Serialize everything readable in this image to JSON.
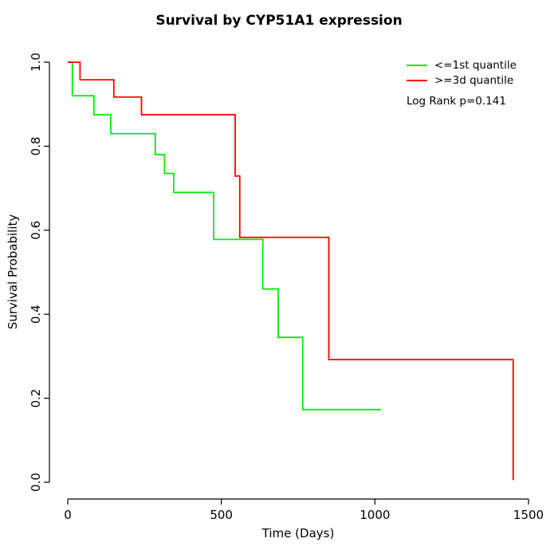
{
  "chart_data": {
    "type": "line",
    "subtype": "kaplan-meier-step",
    "title": "Survival by CYP51A1 expression",
    "xlabel": "Time (Days)",
    "ylabel": "Survival Probability",
    "xlim": [
      0,
      1500
    ],
    "ylim": [
      0.0,
      1.0
    ],
    "x_ticks": [
      0,
      500,
      1000,
      1500
    ],
    "x_tick_labels": [
      "0",
      "500",
      "1000",
      "1500"
    ],
    "y_ticks": [
      0.0,
      0.2,
      0.4,
      0.6,
      0.8,
      1.0
    ],
    "y_tick_labels": [
      "0.0",
      "0.2",
      "0.4",
      "0.6",
      "0.8",
      "1.0"
    ],
    "grid": false,
    "legend_position": "top-right",
    "annotation": "Log Rank p=0.141",
    "series": [
      {
        "name": "<=1st quantile",
        "color": "#00ee00",
        "steps": [
          [
            0,
            1.0
          ],
          [
            15,
            0.92
          ],
          [
            85,
            0.875
          ],
          [
            140,
            0.83
          ],
          [
            285,
            0.78
          ],
          [
            315,
            0.735
          ],
          [
            345,
            0.69
          ],
          [
            475,
            0.578
          ],
          [
            635,
            0.46
          ],
          [
            685,
            0.345
          ],
          [
            765,
            0.173
          ]
        ],
        "end_time": 1020
      },
      {
        "name": ">=3d quantile",
        "color": "#ff0000",
        "steps": [
          [
            0,
            1.0
          ],
          [
            40,
            0.958
          ],
          [
            150,
            0.917
          ],
          [
            240,
            0.875
          ],
          [
            545,
            0.729
          ],
          [
            560,
            0.583
          ],
          [
            850,
            0.292
          ],
          [
            1450,
            0.005
          ]
        ],
        "end_time": 1450
      }
    ]
  }
}
